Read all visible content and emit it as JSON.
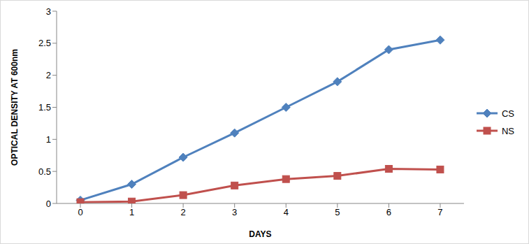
{
  "chart_data": {
    "type": "line",
    "x_label": "DAYS",
    "y_label": "OPTICAL DENSITY AT 600nm",
    "categories": [
      "0",
      "1",
      "2",
      "3",
      "4",
      "5",
      "6",
      "7"
    ],
    "series": [
      {
        "name": "CS",
        "color": "#4f81bd",
        "marker": "diamond",
        "values": [
          0.05,
          0.3,
          0.72,
          1.1,
          1.5,
          1.9,
          2.4,
          2.55
        ]
      },
      {
        "name": "NS",
        "color": "#c0504d",
        "marker": "square",
        "values": [
          0.02,
          0.03,
          0.13,
          0.28,
          0.38,
          0.43,
          0.54,
          0.53
        ]
      }
    ],
    "ylim": [
      0,
      3
    ],
    "yticks": [
      0,
      0.5,
      1,
      1.5,
      2,
      2.5,
      3
    ],
    "grid": false,
    "legend": "right"
  }
}
